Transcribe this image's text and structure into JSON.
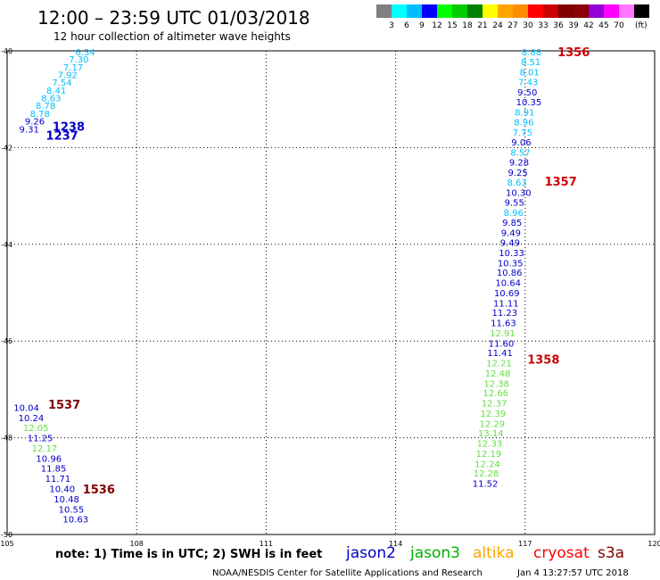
{
  "header": {
    "title": "12:00 – 23:59 UTC 01/03/2018",
    "subtitle": "12 hour collection of altimeter wave heights"
  },
  "color_scale": {
    "colors": [
      "#808080",
      "#00ffff",
      "#00bfff",
      "#0000ff",
      "#00ff00",
      "#00cc00",
      "#008000",
      "#ffff00",
      "#ffa500",
      "#ff8c00",
      "#ff0000",
      "#cc0000",
      "#800000",
      "#8b0000",
      "#9400d3",
      "#ff00ff",
      "#ff77ff",
      "#000000"
    ],
    "labels": [
      "3",
      "6",
      "9",
      "12",
      "15",
      "18",
      "21",
      "24",
      "27",
      "30",
      "33",
      "36",
      "39",
      "42",
      "45",
      "70"
    ],
    "unit": "(ft)"
  },
  "satellites": [
    {
      "name": "jason2",
      "color": "#0000c8"
    },
    {
      "name": "jason3",
      "color": "#00b000"
    },
    {
      "name": "altika",
      "color": "#ffa500"
    },
    {
      "name": "cryosat",
      "color": "#ff0000"
    },
    {
      "name": "s3a",
      "color": "#800000"
    }
  ],
  "footer": {
    "note": "note:  1) Time is in UTC;  2) SWH is in feet",
    "credit": "NOAA/NESDIS Center for Satellite Applications and Research",
    "timestamp": "Jan  4 13:27:57 UTC 2018"
  },
  "chart_data": {
    "type": "scatter",
    "xlim": [
      105,
      120
    ],
    "ylim": [
      -50,
      -40
    ],
    "x_ticks": [
      "105",
      "108",
      "111",
      "114",
      "117",
      "120"
    ],
    "y_ticks": [
      "-40",
      "-42",
      "-44",
      "-46",
      "-48",
      "-50"
    ],
    "grid": true,
    "track_times": [
      {
        "label": "1238",
        "x": 106.05,
        "y": -41.56,
        "color": "#0000c8"
      },
      {
        "label": "1237",
        "x": 105.9,
        "y": -41.74,
        "color": "#0000c8"
      },
      {
        "label": "1356",
        "x": 117.75,
        "y": -40.02,
        "color": "#cc0000"
      },
      {
        "label": "1357",
        "x": 117.45,
        "y": -42.69,
        "color": "#cc0000"
      },
      {
        "label": "1358",
        "x": 117.05,
        "y": -46.37,
        "color": "#cc0000"
      },
      {
        "label": "1537",
        "x": 105.95,
        "y": -47.31,
        "color": "#800000"
      },
      {
        "label": "1536",
        "x": 106.75,
        "y": -49.06,
        "color": "#800000"
      }
    ],
    "tracks": [
      {
        "name": "pass-1237-1238",
        "points": [
          {
            "x": 106.58,
            "y": -40.02,
            "label": "6.34",
            "color": "#00bfff"
          },
          {
            "x": 106.43,
            "y": -40.17,
            "label": "7.30",
            "color": "#00bfff"
          },
          {
            "x": 106.3,
            "y": -40.33,
            "label": "7.17",
            "color": "#00bfff"
          },
          {
            "x": 106.17,
            "y": -40.49,
            "label": "7.92",
            "color": "#00bfff"
          },
          {
            "x": 106.04,
            "y": -40.65,
            "label": "7.54",
            "color": "#00bfff"
          },
          {
            "x": 105.91,
            "y": -40.81,
            "label": "8.41",
            "color": "#00bfff"
          },
          {
            "x": 105.79,
            "y": -40.97,
            "label": "8.63",
            "color": "#00bfff"
          },
          {
            "x": 105.66,
            "y": -41.13,
            "label": "8.78",
            "color": "#00bfff"
          },
          {
            "x": 105.53,
            "y": -41.29,
            "label": "8.78",
            "color": "#00bfff"
          },
          {
            "x": 105.41,
            "y": -41.45,
            "label": "9.26",
            "color": "#0000c8"
          },
          {
            "x": 105.28,
            "y": -41.61,
            "label": "9.31",
            "color": "#0000c8"
          }
        ]
      },
      {
        "name": "pass-1356-1358",
        "points": [
          {
            "x": 116.92,
            "y": -40.02,
            "label": "8.88",
            "color": "#00bfff"
          },
          {
            "x": 116.9,
            "y": -40.22,
            "label": "8.51",
            "color": "#00bfff"
          },
          {
            "x": 116.87,
            "y": -40.43,
            "label": "8.01",
            "color": "#00bfff"
          },
          {
            "x": 116.84,
            "y": -40.64,
            "label": "7.43",
            "color": "#00bfff"
          },
          {
            "x": 116.82,
            "y": -40.85,
            "label": "9.50",
            "color": "#0000c8"
          },
          {
            "x": 116.79,
            "y": -41.05,
            "label": "10.35",
            "color": "#0000c8"
          },
          {
            "x": 116.76,
            "y": -41.26,
            "label": "8.91",
            "color": "#00bfff"
          },
          {
            "x": 116.74,
            "y": -41.47,
            "label": "8.96",
            "color": "#00bfff"
          },
          {
            "x": 116.71,
            "y": -41.68,
            "label": "7.75",
            "color": "#00bfff"
          },
          {
            "x": 116.68,
            "y": -41.88,
            "label": "9.06",
            "color": "#0000c8"
          },
          {
            "x": 116.66,
            "y": -42.09,
            "label": "8.57",
            "color": "#00bfff"
          },
          {
            "x": 116.63,
            "y": -42.3,
            "label": "9.28",
            "color": "#0000c8"
          },
          {
            "x": 116.6,
            "y": -42.51,
            "label": "9.25",
            "color": "#0000c8"
          },
          {
            "x": 116.58,
            "y": -42.71,
            "label": "8.63",
            "color": "#00bfff"
          },
          {
            "x": 116.55,
            "y": -42.92,
            "label": "10.30",
            "color": "#0000c8"
          },
          {
            "x": 116.52,
            "y": -43.13,
            "label": "9.55",
            "color": "#0000c8"
          },
          {
            "x": 116.5,
            "y": -43.34,
            "label": "8.96",
            "color": "#00bfff"
          },
          {
            "x": 116.47,
            "y": -43.54,
            "label": "9.85",
            "color": "#0000c8"
          },
          {
            "x": 116.44,
            "y": -43.75,
            "label": "9.49",
            "color": "#0000c8"
          },
          {
            "x": 116.42,
            "y": -43.96,
            "label": "9.49",
            "color": "#0000c8"
          },
          {
            "x": 116.39,
            "y": -44.17,
            "label": "10.33",
            "color": "#0000c8"
          },
          {
            "x": 116.36,
            "y": -44.38,
            "label": "10.35",
            "color": "#0000c8"
          },
          {
            "x": 116.34,
            "y": -44.58,
            "label": "10.86",
            "color": "#0000c8"
          },
          {
            "x": 116.31,
            "y": -44.79,
            "label": "10.64",
            "color": "#0000c8"
          },
          {
            "x": 116.28,
            "y": -45.0,
            "label": "10.69",
            "color": "#0000c8"
          },
          {
            "x": 116.26,
            "y": -45.21,
            "label": "11.11",
            "color": "#0000c8"
          },
          {
            "x": 116.23,
            "y": -45.41,
            "label": "11.23",
            "color": "#0000c8"
          },
          {
            "x": 116.2,
            "y": -45.62,
            "label": "11.63",
            "color": "#0000c8"
          },
          {
            "x": 116.18,
            "y": -45.83,
            "label": "12.91",
            "color": "#66dd44"
          },
          {
            "x": 116.15,
            "y": -46.04,
            "label": "11.60",
            "color": "#0000c8"
          },
          {
            "x": 116.12,
            "y": -46.24,
            "label": "11.41",
            "color": "#0000c8"
          },
          {
            "x": 116.1,
            "y": -46.45,
            "label": "12.21",
            "color": "#66dd44"
          },
          {
            "x": 116.07,
            "y": -46.66,
            "label": "12.48",
            "color": "#66dd44"
          },
          {
            "x": 116.04,
            "y": -46.87,
            "label": "12.38",
            "color": "#66dd44"
          },
          {
            "x": 116.02,
            "y": -47.07,
            "label": "12.66",
            "color": "#66dd44"
          },
          {
            "x": 115.99,
            "y": -47.28,
            "label": "12.37",
            "color": "#66dd44"
          },
          {
            "x": 115.96,
            "y": -47.49,
            "label": "12.39",
            "color": "#66dd44"
          },
          {
            "x": 115.94,
            "y": -47.7,
            "label": "12.29",
            "color": "#66dd44"
          },
          {
            "x": 115.91,
            "y": -47.9,
            "label": "13.14",
            "color": "#66dd44"
          },
          {
            "x": 115.88,
            "y": -48.11,
            "label": "12.33",
            "color": "#66dd44"
          },
          {
            "x": 115.86,
            "y": -48.32,
            "label": "12.19",
            "color": "#66dd44"
          },
          {
            "x": 115.83,
            "y": -48.53,
            "label": "12.24",
            "color": "#66dd44"
          },
          {
            "x": 115.8,
            "y": -48.73,
            "label": "12.28",
            "color": "#66dd44"
          },
          {
            "x": 115.78,
            "y": -48.94,
            "label": "11.52",
            "color": "#0000c8"
          }
        ]
      },
      {
        "name": "pass-1536-1537",
        "points": [
          {
            "x": 105.15,
            "y": -47.37,
            "label": "10.04",
            "color": "#0000c8"
          },
          {
            "x": 105.26,
            "y": -47.58,
            "label": "10.24",
            "color": "#0000c8"
          },
          {
            "x": 105.37,
            "y": -47.79,
            "label": "12.05",
            "color": "#66dd44"
          },
          {
            "x": 105.47,
            "y": -48.0,
            "label": "11.25",
            "color": "#0000c8"
          },
          {
            "x": 105.57,
            "y": -48.21,
            "label": "12.17",
            "color": "#66dd44"
          },
          {
            "x": 105.67,
            "y": -48.42,
            "label": "10.96",
            "color": "#0000c8"
          },
          {
            "x": 105.78,
            "y": -48.63,
            "label": "11.85",
            "color": "#0000c8"
          },
          {
            "x": 105.88,
            "y": -48.84,
            "label": "11.71",
            "color": "#0000c8"
          },
          {
            "x": 105.98,
            "y": -49.05,
            "label": "10.40",
            "color": "#0000c8"
          },
          {
            "x": 106.08,
            "y": -49.26,
            "label": "10.48",
            "color": "#0000c8"
          },
          {
            "x": 106.19,
            "y": -49.47,
            "label": "10.55",
            "color": "#0000c8"
          },
          {
            "x": 106.29,
            "y": -49.68,
            "label": "10.63",
            "color": "#0000c8"
          }
        ]
      }
    ]
  }
}
